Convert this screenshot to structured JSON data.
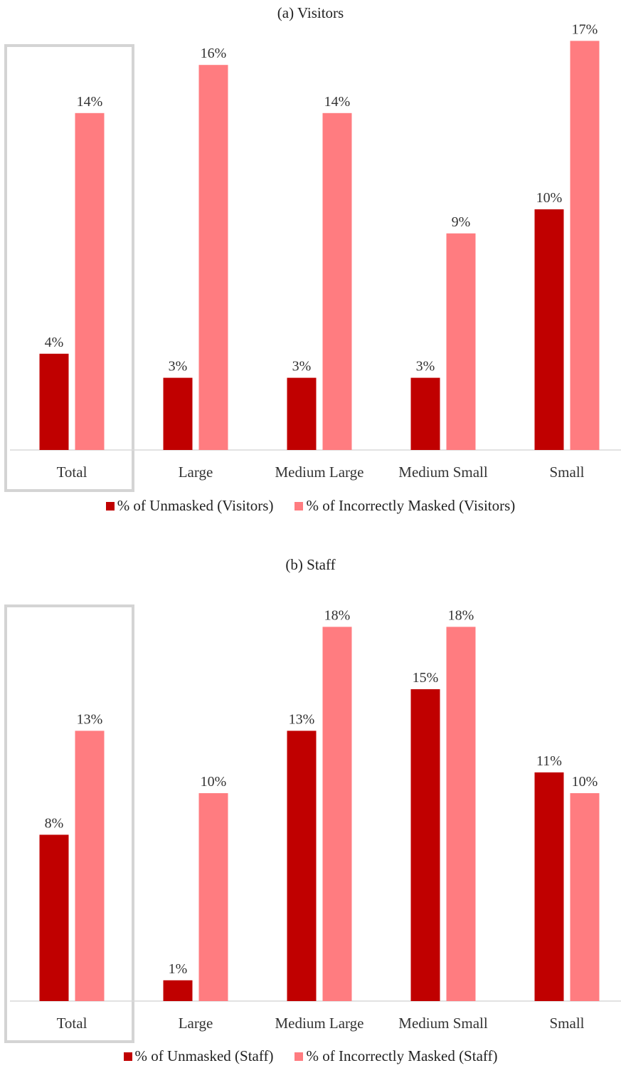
{
  "chart_data": [
    {
      "type": "bar",
      "title": "(a)  Visitors",
      "categories": [
        "Total",
        "Large",
        "Medium Large",
        "Medium Small",
        "Small"
      ],
      "series": [
        {
          "name": "% of Unmasked (Visitors)",
          "values": [
            4,
            3,
            3,
            3,
            10
          ],
          "labels": [
            "4%",
            "3%",
            "3%",
            "3%",
            "10%"
          ],
          "color": "#c00000"
        },
        {
          "name": "% of Incorrectly Masked (Visitors)",
          "values": [
            14,
            16,
            14,
            9,
            17
          ],
          "labels": [
            "14%",
            "16%",
            "14%",
            "9%",
            "17%"
          ],
          "color": "#ff7c80"
        }
      ],
      "highlighted_category": "Total",
      "legend_position": "bottom",
      "grid": false
    },
    {
      "type": "bar",
      "title": "(b)  Staff",
      "categories": [
        "Total",
        "Large",
        "Medium Large",
        "Medium Small",
        "Small"
      ],
      "series": [
        {
          "name": "% of Unmasked (Staff)",
          "values": [
            8,
            1,
            13,
            15,
            11
          ],
          "labels": [
            "8%",
            "1%",
            "13%",
            "15%",
            "11%"
          ],
          "color": "#c00000"
        },
        {
          "name": "% of Incorrectly Masked (Staff)",
          "values": [
            13,
            10,
            18,
            18,
            10
          ],
          "labels": [
            "13%",
            "10%",
            "18%",
            "18%",
            "10%"
          ],
          "color": "#ff7c80"
        }
      ],
      "highlighted_category": "Total",
      "legend_position": "bottom",
      "grid": false
    }
  ]
}
